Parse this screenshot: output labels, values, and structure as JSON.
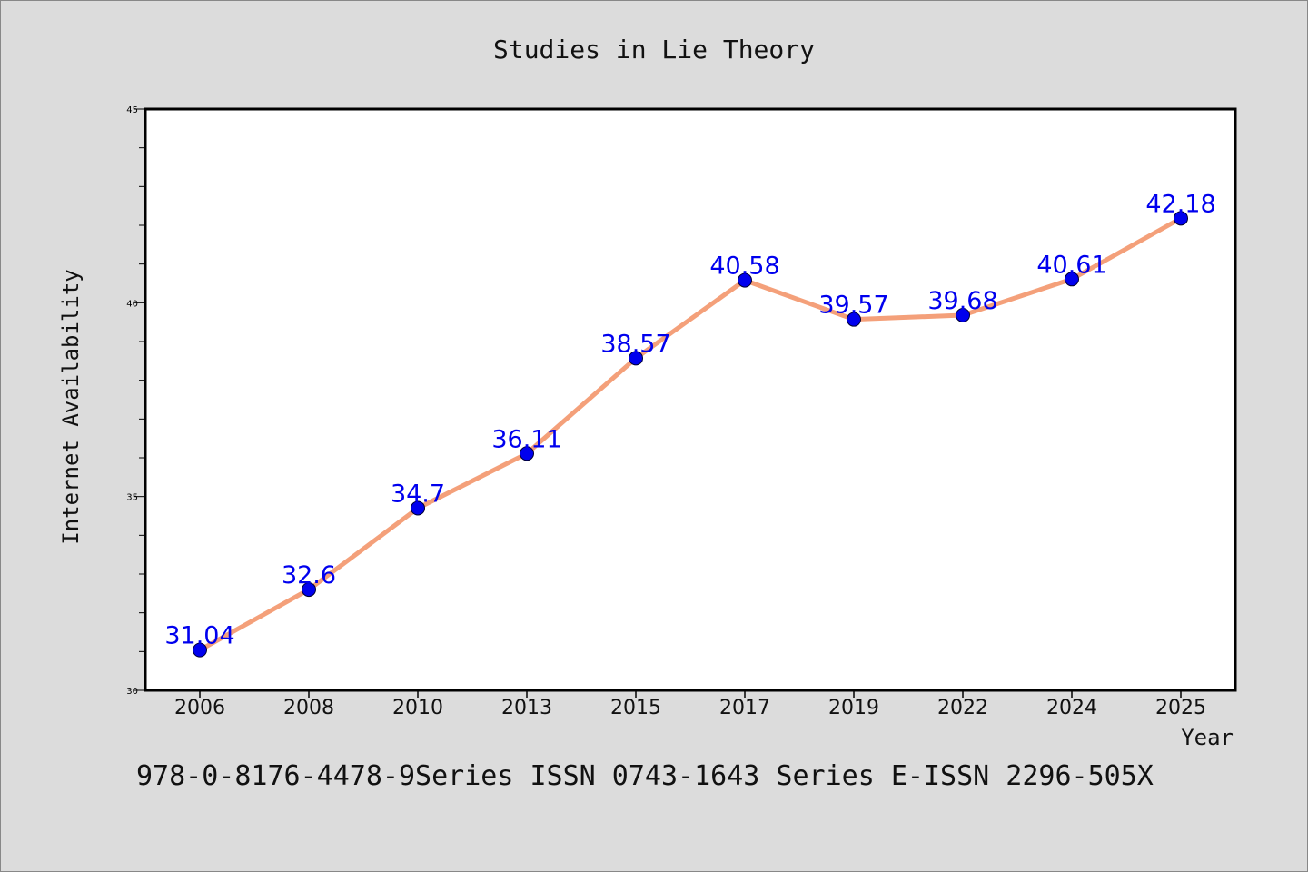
{
  "chart_data": {
    "type": "line",
    "title": "Studies in Lie Theory",
    "xlabel": "Year",
    "ylabel": "Internet Availability",
    "footer": "978-0-8176-4478-9Series ISSN 0743-1643 Series E-ISSN 2296-505X",
    "categories": [
      "2006",
      "2008",
      "2010",
      "2013",
      "2015",
      "2017",
      "2019",
      "2022",
      "2024",
      "2025"
    ],
    "values": [
      31.04,
      32.6,
      34.7,
      36.11,
      38.57,
      40.58,
      39.57,
      39.68,
      40.61,
      42.18
    ],
    "data_labels": [
      "31.04",
      "32.6",
      "34.7",
      "36.11",
      "38.57",
      "40.58",
      "39.57",
      "39.68",
      "40.61",
      "42.18"
    ],
    "ylim": [
      30,
      45
    ],
    "yticks": [
      "30",
      "35",
      "40",
      "45"
    ],
    "grid": false,
    "colors": {
      "line": "#f4a07a",
      "marker": "#0000ee",
      "label": "#0000ee",
      "background": "#dcdcdc",
      "plot_background": "#ffffff"
    }
  }
}
